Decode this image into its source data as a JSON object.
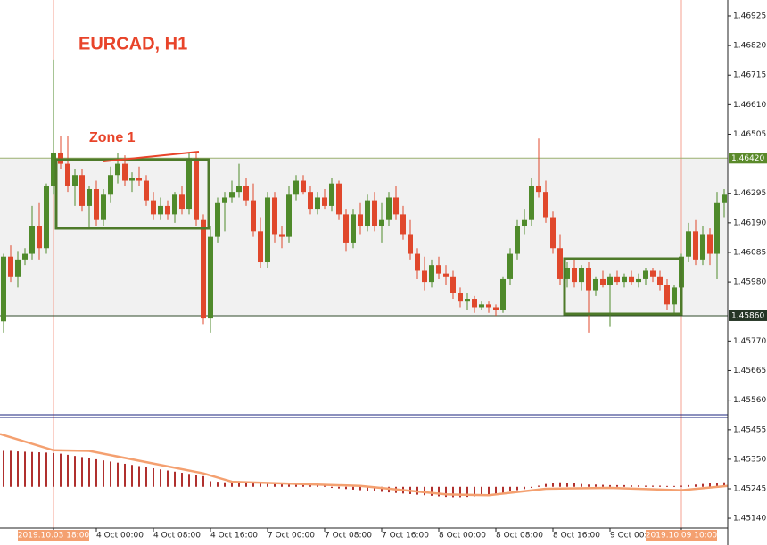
{
  "chart_data": [
    {
      "type": "candlestick",
      "title": "EURCAD, H1",
      "annotation": "Zone 1",
      "up_color": "#4f8a2b",
      "down_color": "#e0482c",
      "xlim": [
        -0.5,
        101.5
      ],
      "ylim": [
        1.45508,
        1.46982
      ],
      "xticks": [
        {
          "value": 7,
          "label": "2019.10.03 18:00"
        },
        {
          "value": 13,
          "label": "4 Oct 00:00"
        },
        {
          "value": 21,
          "label": "4 Oct 08:00"
        },
        {
          "value": 29,
          "label": "4 Oct 16:00"
        },
        {
          "value": 37,
          "label": "7 Oct 00:00"
        },
        {
          "value": 45,
          "label": "7 Oct 08:00"
        },
        {
          "value": 53,
          "label": "7 Oct 16:00"
        },
        {
          "value": 61,
          "label": "8 Oct 00:00"
        },
        {
          "value": 69,
          "label": "8 Oct 08:00"
        },
        {
          "value": 77,
          "label": "8 Oct 16:00"
        },
        {
          "value": 85,
          "label": "9 Oct 00:00"
        },
        {
          "value": 95,
          "label": "2019.10.09 10:00"
        }
      ],
      "cursor_lines": [
        7,
        95
      ],
      "yticks": [
        1.46925,
        {
          "value": 1.4682,
          "label": "1.46820"
        },
        1.46715,
        {
          "value": 1.4661,
          "label": "1.46610"
        },
        1.46505,
        1.46295,
        {
          "value": 1.4619,
          "label": "1.46190"
        },
        1.46085,
        {
          "value": 1.4598,
          "label": "1.45980"
        },
        {
          "value": 1.4577,
          "label": "1.45770"
        },
        1.45665,
        {
          "value": 1.4556,
          "label": "1.45560"
        }
      ],
      "levels": [
        {
          "value": 1.4642,
          "label": "1.46420"
        },
        {
          "value": 1.4586,
          "label": "1.45860"
        }
      ],
      "ohlc": [
        [
          1.4584,
          1.4608,
          1.458,
          1.4607
        ],
        [
          1.4607,
          1.4611,
          1.4598,
          1.46
        ],
        [
          1.46,
          1.4609,
          1.4596,
          1.4606
        ],
        [
          1.4606,
          1.461,
          1.4604,
          1.4608
        ],
        [
          1.4608,
          1.4625,
          1.4606,
          1.4618
        ],
        [
          1.4618,
          1.4626,
          1.4606,
          1.461
        ],
        [
          1.461,
          1.4633,
          1.4608,
          1.4632
        ],
        [
          1.4632,
          1.4677,
          1.4629,
          1.4644
        ],
        [
          1.4644,
          1.465,
          1.4638,
          1.464
        ],
        [
          1.464,
          1.465,
          1.463,
          1.4632
        ],
        [
          1.4632,
          1.4638,
          1.4625,
          1.4636
        ],
        [
          1.4636,
          1.4638,
          1.4623,
          1.4625
        ],
        [
          1.4625,
          1.4632,
          1.4617,
          1.4631
        ],
        [
          1.4631,
          1.4634,
          1.4618,
          1.462
        ],
        [
          1.462,
          1.4631,
          1.4618,
          1.4629
        ],
        [
          1.4629,
          1.4639,
          1.4626,
          1.4636
        ],
        [
          1.4636,
          1.4644,
          1.4633,
          1.464
        ],
        [
          1.464,
          1.4643,
          1.4632,
          1.4634
        ],
        [
          1.4634,
          1.4637,
          1.463,
          1.4635
        ],
        [
          1.4635,
          1.4639,
          1.4632,
          1.4634
        ],
        [
          1.4634,
          1.4636,
          1.4625,
          1.4627
        ],
        [
          1.4627,
          1.463,
          1.462,
          1.4622
        ],
        [
          1.4622,
          1.4628,
          1.462,
          1.4625
        ],
        [
          1.4625,
          1.4627,
          1.462,
          1.4622
        ],
        [
          1.4622,
          1.463,
          1.4619,
          1.4629
        ],
        [
          1.4629,
          1.4632,
          1.4622,
          1.4624
        ],
        [
          1.4624,
          1.4644,
          1.4622,
          1.4642
        ],
        [
          1.4642,
          1.4644,
          1.4618,
          1.462
        ],
        [
          1.462,
          1.4622,
          1.4583,
          1.4585
        ],
        [
          1.4585,
          1.4618,
          1.458,
          1.4614
        ],
        [
          1.4614,
          1.4628,
          1.4612,
          1.4626
        ],
        [
          1.4626,
          1.463,
          1.4616,
          1.4628
        ],
        [
          1.4628,
          1.4634,
          1.4626,
          1.463
        ],
        [
          1.463,
          1.464,
          1.4628,
          1.4632
        ],
        [
          1.4632,
          1.4635,
          1.4625,
          1.4627
        ],
        [
          1.4627,
          1.4633,
          1.4614,
          1.4616
        ],
        [
          1.4616,
          1.4621,
          1.4603,
          1.4605
        ],
        [
          1.4605,
          1.463,
          1.4603,
          1.4628
        ],
        [
          1.4628,
          1.463,
          1.4612,
          1.4615
        ],
        [
          1.4615,
          1.4618,
          1.461,
          1.4614
        ],
        [
          1.4614,
          1.4632,
          1.4612,
          1.4629
        ],
        [
          1.4629,
          1.4636,
          1.4627,
          1.4634
        ],
        [
          1.4634,
          1.4636,
          1.4629,
          1.463
        ],
        [
          1.463,
          1.4632,
          1.4622,
          1.4624
        ],
        [
          1.4624,
          1.463,
          1.4622,
          1.4628
        ],
        [
          1.4628,
          1.4631,
          1.4624,
          1.4625
        ],
        [
          1.4625,
          1.4635,
          1.4623,
          1.4633
        ],
        [
          1.4633,
          1.4634,
          1.462,
          1.4622
        ],
        [
          1.4622,
          1.4624,
          1.4609,
          1.4612
        ],
        [
          1.4612,
          1.4624,
          1.461,
          1.4622
        ],
        [
          1.4622,
          1.4626,
          1.4615,
          1.4618
        ],
        [
          1.4618,
          1.4629,
          1.4616,
          1.4627
        ],
        [
          1.4627,
          1.463,
          1.4616,
          1.4618
        ],
        [
          1.4618,
          1.4626,
          1.4612,
          1.462
        ],
        [
          1.462,
          1.463,
          1.4618,
          1.4628
        ],
        [
          1.4628,
          1.4632,
          1.462,
          1.4622
        ],
        [
          1.4622,
          1.4625,
          1.4613,
          1.4615
        ],
        [
          1.4615,
          1.462,
          1.4606,
          1.4608
        ],
        [
          1.4608,
          1.461,
          1.4599,
          1.4602
        ],
        [
          1.4602,
          1.4607,
          1.4595,
          1.4598
        ],
        [
          1.4598,
          1.4606,
          1.4596,
          1.4604
        ],
        [
          1.4604,
          1.4607,
          1.4599,
          1.4601
        ],
        [
          1.4601,
          1.4604,
          1.4597,
          1.46
        ],
        [
          1.46,
          1.4602,
          1.4592,
          1.4594
        ],
        [
          1.4594,
          1.4596,
          1.4589,
          1.4591
        ],
        [
          1.4591,
          1.4594,
          1.4588,
          1.4592
        ],
        [
          1.4592,
          1.4593,
          1.4587,
          1.4589
        ],
        [
          1.4589,
          1.4591,
          1.4588,
          1.459
        ],
        [
          1.459,
          1.4591,
          1.4587,
          1.4589
        ],
        [
          1.4589,
          1.459,
          1.4586,
          1.4588
        ],
        [
          1.4588,
          1.46,
          1.4587,
          1.4599
        ],
        [
          1.4599,
          1.461,
          1.4597,
          1.4608
        ],
        [
          1.4608,
          1.462,
          1.4606,
          1.4618
        ],
        [
          1.4618,
          1.4624,
          1.4615,
          1.462
        ],
        [
          1.462,
          1.4635,
          1.4618,
          1.4632
        ],
        [
          1.4632,
          1.4649,
          1.4628,
          1.463
        ],
        [
          1.463,
          1.4634,
          1.4619,
          1.4621
        ],
        [
          1.4621,
          1.4623,
          1.4608,
          1.461
        ],
        [
          1.461,
          1.4615,
          1.4597,
          1.4599
        ],
        [
          1.4599,
          1.4605,
          1.4596,
          1.4603
        ],
        [
          1.4603,
          1.4606,
          1.4596,
          1.4598
        ],
        [
          1.4598,
          1.4604,
          1.4595,
          1.4603
        ],
        [
          1.4603,
          1.4605,
          1.458,
          1.4595
        ],
        [
          1.4595,
          1.46,
          1.4593,
          1.4599
        ],
        [
          1.4599,
          1.4602,
          1.4596,
          1.4597
        ],
        [
          1.4597,
          1.4601,
          1.4582,
          1.46
        ],
        [
          1.46,
          1.4602,
          1.4597,
          1.4598
        ],
        [
          1.4598,
          1.4601,
          1.4596,
          1.46
        ],
        [
          1.46,
          1.4602,
          1.4597,
          1.4598
        ],
        [
          1.4598,
          1.4601,
          1.4596,
          1.4599
        ],
        [
          1.4599,
          1.4603,
          1.4597,
          1.4602
        ],
        [
          1.4602,
          1.4603,
          1.4598,
          1.46
        ],
        [
          1.46,
          1.4602,
          1.4595,
          1.4597
        ],
        [
          1.4597,
          1.4599,
          1.4588,
          1.459
        ],
        [
          1.459,
          1.4597,
          1.4587,
          1.4596
        ],
        [
          1.4596,
          1.4608,
          1.4595,
          1.4607
        ],
        [
          1.4607,
          1.4619,
          1.4605,
          1.4616
        ],
        [
          1.4616,
          1.462,
          1.4604,
          1.4606
        ],
        [
          1.4606,
          1.4618,
          1.4604,
          1.4615
        ],
        [
          1.4615,
          1.4617,
          1.4604,
          1.4608
        ],
        [
          1.4608,
          1.463,
          1.4599,
          1.4626
        ],
        [
          1.4626,
          1.4631,
          1.4621,
          1.4629
        ]
      ]
    },
    {
      "type": "oscillator",
      "color": "#b0302e",
      "signal_color": "#f4a070",
      "xlim": [
        -0.5,
        101.5
      ],
      "ylim": [
        1.45083,
        1.45499
      ],
      "baseline": 1.45252,
      "yticks": [
        1.45455,
        {
          "value": 1.4535,
          "label": "1.45350"
        },
        1.45245,
        {
          "value": 1.4514,
          "label": "1.45140"
        }
      ],
      "values": [
        1.4538,
        1.4538,
        1.45378,
        1.45377,
        1.45376,
        1.45375,
        1.45374,
        1.45372,
        1.4537,
        1.45366,
        1.45362,
        1.45358,
        1.45354,
        1.4535,
        1.45346,
        1.45342,
        1.45338,
        1.45334,
        1.4533,
        1.45326,
        1.45322,
        1.45318,
        1.45314,
        1.4531,
        1.45306,
        1.45302,
        1.45298,
        1.45294,
        1.4529,
        1.45272,
        1.4527,
        1.45268,
        1.45267,
        1.45266,
        1.45265,
        1.45264,
        1.45263,
        1.45262,
        1.45262,
        1.45261,
        1.4526,
        1.4526,
        1.45259,
        1.45258,
        1.45258,
        1.45257,
        1.45248,
        1.45246,
        1.45244,
        1.45242,
        1.4524,
        1.45238,
        1.45236,
        1.45234,
        1.45232,
        1.4523,
        1.45228,
        1.45226,
        1.45224,
        1.45222,
        1.4522,
        1.45218,
        1.45216,
        1.45215,
        1.45215,
        1.45216,
        1.45218,
        1.4522,
        1.45222,
        1.45226,
        1.4523,
        1.45236,
        1.4524,
        1.45244,
        1.45248,
        1.45256,
        1.45262,
        1.45266,
        1.45268,
        1.45266,
        1.45264,
        1.45262,
        1.4526,
        1.4526,
        1.45259,
        1.45258,
        1.45258,
        1.45258,
        1.45257,
        1.45257,
        1.45256,
        1.45256,
        1.45256,
        1.45255,
        1.45255,
        1.45256,
        1.45258,
        1.4526,
        1.45262,
        1.45264,
        1.45266,
        1.45268
      ],
      "signal": {
        "x": [
          -0.5,
          7,
          12,
          20,
          28,
          32,
          50,
          62,
          68,
          76,
          85,
          95,
          101.5
        ],
        "values": [
          1.4544,
          1.45382,
          1.4538,
          1.4534,
          1.453,
          1.4527,
          1.45255,
          1.45225,
          1.45222,
          1.45245,
          1.45248,
          1.4524,
          1.45255
        ]
      }
    }
  ]
}
